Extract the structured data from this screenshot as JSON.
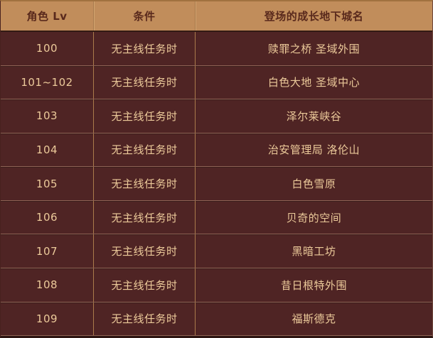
{
  "table": {
    "title": "growth-dungeon-level-table",
    "columns": [
      {
        "label": "角色 Lv"
      },
      {
        "label": "条件"
      },
      {
        "label": "登场的成长地下城名"
      }
    ],
    "rows": [
      {
        "level": "100",
        "condition": "无主线任务时",
        "dungeon": "赎罪之桥 圣域外围"
      },
      {
        "level": "101~102",
        "condition": "无主线任务时",
        "dungeon": "白色大地 圣域中心"
      },
      {
        "level": "103",
        "condition": "无主线任务时",
        "dungeon": "泽尔莱峡谷"
      },
      {
        "level": "104",
        "condition": "无主线任务时",
        "dungeon": "治安管理局 洛伦山"
      },
      {
        "level": "105",
        "condition": "无主线任务时",
        "dungeon": "白色雪原"
      },
      {
        "level": "106",
        "condition": "无主线任务时",
        "dungeon": "贝奇的空间"
      },
      {
        "level": "107",
        "condition": "无主线任务时",
        "dungeon": "黑暗工坊"
      },
      {
        "level": "108",
        "condition": "无主线任务时",
        "dungeon": "昔日根特外围"
      },
      {
        "level": "109",
        "condition": "无主线任务时",
        "dungeon": "福斯德克"
      }
    ],
    "colors": {
      "header_bg": "#c18d5b",
      "header_text": "#59291c",
      "row_bg": "#4f2424",
      "row_text": "#ecca9a",
      "divider_vertical": "#ab7b4c",
      "divider_horizontal": "#8f6355"
    }
  }
}
